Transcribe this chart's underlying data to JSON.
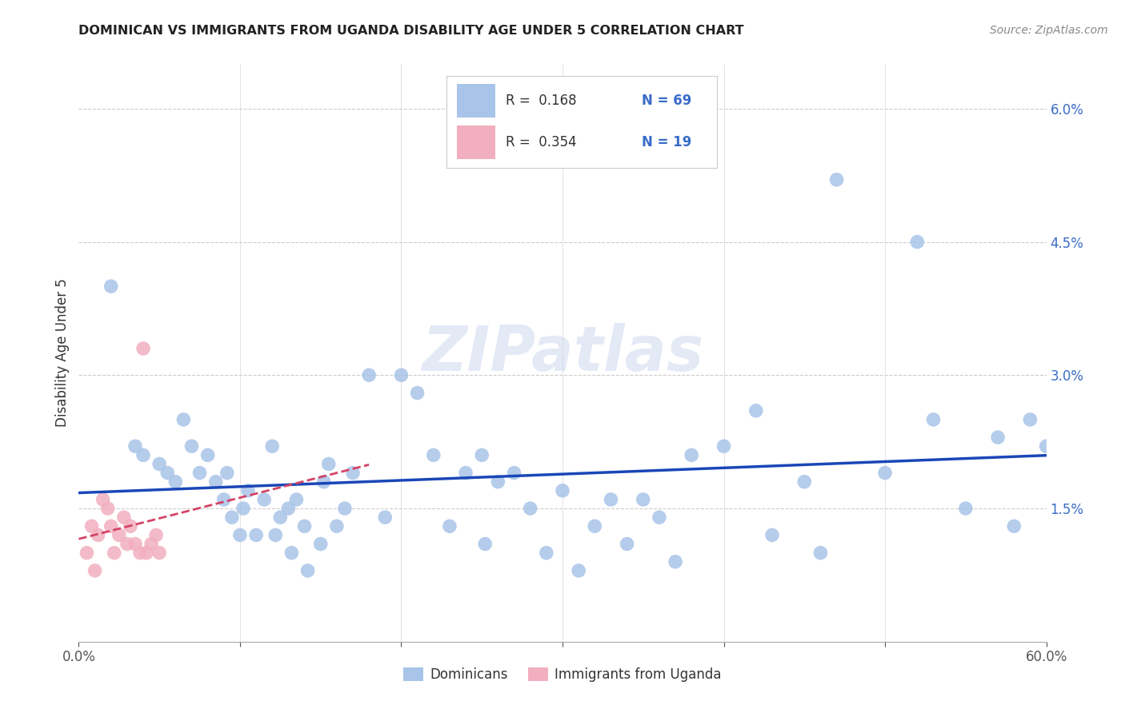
{
  "title": "DOMINICAN VS IMMIGRANTS FROM UGANDA DISABILITY AGE UNDER 5 CORRELATION CHART",
  "source": "Source: ZipAtlas.com",
  "ylabel": "Disability Age Under 5",
  "xlim": [
    0,
    0.6
  ],
  "ylim": [
    0,
    0.065
  ],
  "yticks": [
    0.0,
    0.015,
    0.03,
    0.045,
    0.06
  ],
  "ytick_labels": [
    "",
    "1.5%",
    "3.0%",
    "4.5%",
    "6.0%"
  ],
  "xticks": [
    0.0,
    0.1,
    0.2,
    0.3,
    0.4,
    0.5,
    0.6
  ],
  "xtick_labels": [
    "0.0%",
    "",
    "",
    "",
    "",
    "",
    "60.0%"
  ],
  "blue_color": "#a8c4e8",
  "pink_color": "#f2afc0",
  "trend_blue": "#1a47b8",
  "trend_pink": "#d44466",
  "legend_r_blue": "R =  0.168",
  "legend_n_blue": "N = 69",
  "legend_r_pink": "R =  0.354",
  "legend_n_pink": "N = 19",
  "watermark": "ZIPatlas",
  "blue_scatter_x": [
    0.02,
    0.035,
    0.04,
    0.05,
    0.055,
    0.06,
    0.065,
    0.07,
    0.075,
    0.08,
    0.085,
    0.09,
    0.092,
    0.095,
    0.1,
    0.102,
    0.105,
    0.11,
    0.115,
    0.12,
    0.122,
    0.125,
    0.13,
    0.132,
    0.135,
    0.14,
    0.142,
    0.15,
    0.152,
    0.155,
    0.16,
    0.165,
    0.17,
    0.18,
    0.19,
    0.2,
    0.21,
    0.22,
    0.23,
    0.24,
    0.25,
    0.252,
    0.26,
    0.27,
    0.28,
    0.29,
    0.3,
    0.31,
    0.32,
    0.33,
    0.34,
    0.35,
    0.36,
    0.37,
    0.38,
    0.4,
    0.42,
    0.43,
    0.45,
    0.46,
    0.47,
    0.5,
    0.52,
    0.53,
    0.55,
    0.57,
    0.58,
    0.59,
    0.6
  ],
  "blue_scatter_y": [
    0.04,
    0.022,
    0.021,
    0.02,
    0.019,
    0.018,
    0.025,
    0.022,
    0.019,
    0.021,
    0.018,
    0.016,
    0.019,
    0.014,
    0.012,
    0.015,
    0.017,
    0.012,
    0.016,
    0.022,
    0.012,
    0.014,
    0.015,
    0.01,
    0.016,
    0.013,
    0.008,
    0.011,
    0.018,
    0.02,
    0.013,
    0.015,
    0.019,
    0.03,
    0.014,
    0.03,
    0.028,
    0.021,
    0.013,
    0.019,
    0.021,
    0.011,
    0.018,
    0.019,
    0.015,
    0.01,
    0.017,
    0.008,
    0.013,
    0.016,
    0.011,
    0.016,
    0.014,
    0.009,
    0.021,
    0.022,
    0.026,
    0.012,
    0.018,
    0.01,
    0.052,
    0.019,
    0.045,
    0.025,
    0.015,
    0.023,
    0.013,
    0.025,
    0.022
  ],
  "pink_scatter_x": [
    0.005,
    0.008,
    0.01,
    0.012,
    0.015,
    0.018,
    0.02,
    0.022,
    0.025,
    0.028,
    0.03,
    0.032,
    0.035,
    0.038,
    0.04,
    0.042,
    0.045,
    0.048,
    0.05
  ],
  "pink_scatter_y": [
    0.01,
    0.013,
    0.008,
    0.012,
    0.016,
    0.015,
    0.013,
    0.01,
    0.012,
    0.014,
    0.011,
    0.013,
    0.011,
    0.01,
    0.033,
    0.01,
    0.011,
    0.012,
    0.01
  ]
}
